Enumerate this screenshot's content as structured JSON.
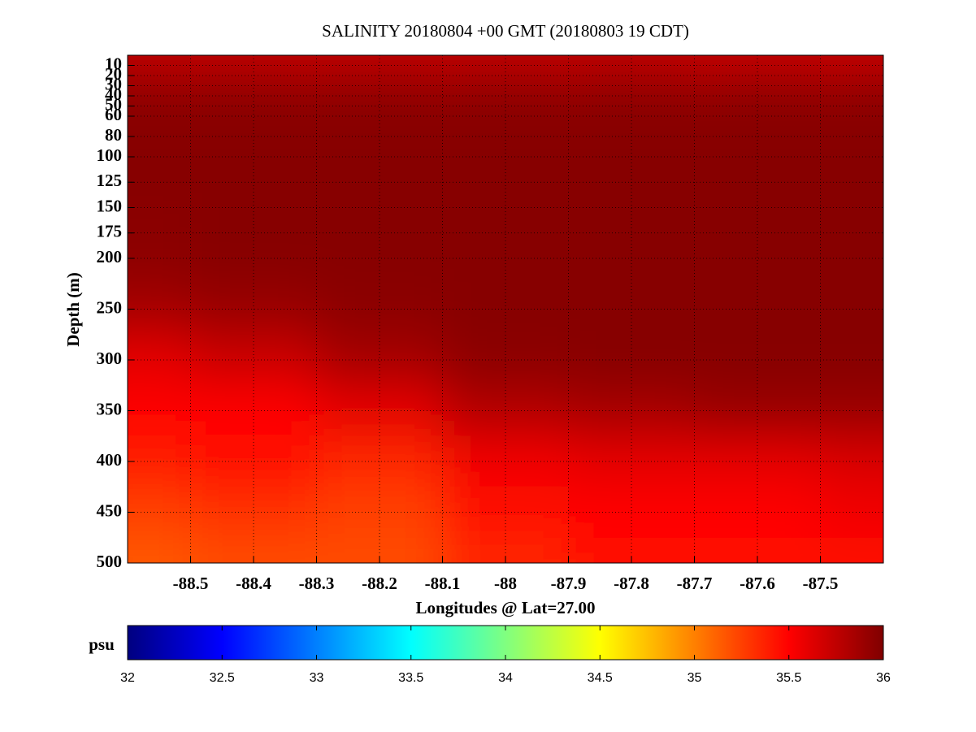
{
  "chart_data": {
    "type": "heatmap",
    "title": "SALINITY 20180804 +00 GMT (20180803 19 CDT)",
    "xlabel": "Longitudes @ Lat=27.00",
    "ylabel": "Depth (m)",
    "x": [
      -88.6,
      -88.4,
      -88.2,
      -88.0,
      -87.8,
      -87.6,
      -87.4
    ],
    "y": [
      10,
      30,
      100,
      200,
      250,
      300,
      350,
      400,
      450,
      500
    ],
    "z": [
      [
        35.75,
        35.75,
        35.75,
        35.75,
        35.75,
        35.73,
        35.73
      ],
      [
        35.95,
        35.95,
        35.95,
        35.95,
        35.95,
        35.95,
        35.95
      ],
      [
        35.97,
        35.97,
        35.97,
        35.97,
        35.97,
        35.97,
        35.97
      ],
      [
        35.95,
        35.97,
        35.97,
        35.97,
        35.97,
        35.97,
        35.97
      ],
      [
        35.85,
        35.9,
        35.95,
        35.97,
        35.97,
        35.97,
        35.97
      ],
      [
        35.6,
        35.7,
        35.85,
        35.95,
        35.97,
        35.97,
        35.97
      ],
      [
        35.5,
        35.5,
        35.6,
        35.8,
        35.85,
        35.9,
        35.9
      ],
      [
        35.4,
        35.45,
        35.35,
        35.55,
        35.6,
        35.6,
        35.65
      ],
      [
        35.25,
        35.3,
        35.25,
        35.45,
        35.5,
        35.5,
        35.55
      ],
      [
        35.15,
        35.2,
        35.2,
        35.35,
        35.45,
        35.45,
        35.45
      ]
    ],
    "xlim": [
      -88.6,
      -87.4
    ],
    "ylim": [
      0,
      500
    ],
    "y_inverted": true,
    "xticks": [
      -88.5,
      -88.4,
      -88.3,
      -88.2,
      -88.1,
      -88,
      -87.9,
      -87.8,
      -87.7,
      -87.6,
      -87.5
    ],
    "yticks": [
      10,
      20,
      30,
      40,
      50,
      60,
      80,
      100,
      125,
      150,
      175,
      200,
      250,
      300,
      350,
      400,
      450,
      500
    ],
    "grid": true,
    "colormap": "jet",
    "colorbar": {
      "label": "psu",
      "lim": [
        32,
        36
      ],
      "ticks": [
        32,
        32.5,
        33,
        33.5,
        34,
        34.5,
        35,
        35.5,
        36
      ]
    }
  }
}
